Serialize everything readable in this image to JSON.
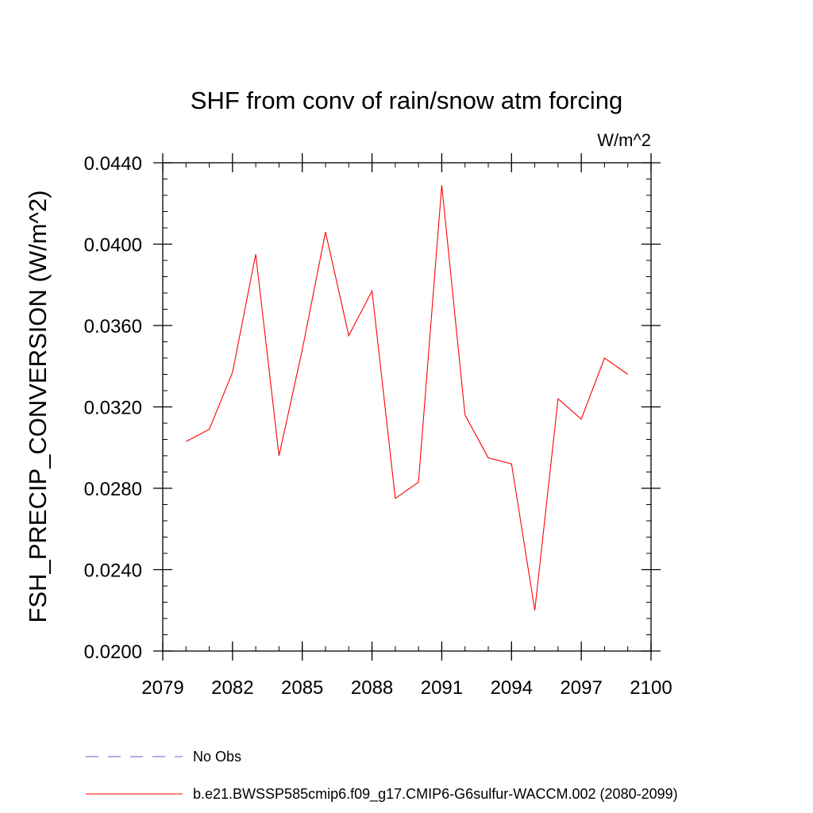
{
  "chart_data": {
    "type": "line",
    "title": "SHF from conv of rain/snow atm forcing",
    "units": "W/m^2",
    "ylabel": "FSH_PRECIP_CONVERSION  (W/m^2)",
    "xlabel": "",
    "xlim": [
      2079,
      2100
    ],
    "ylim": [
      0.02,
      0.044
    ],
    "xticks": [
      "2079",
      "2082",
      "2085",
      "2088",
      "2091",
      "2094",
      "2097",
      "2100"
    ],
    "yticks": [
      "0.0200",
      "0.0240",
      "0.0280",
      "0.0320",
      "0.0360",
      "0.0400",
      "0.0440"
    ],
    "grid": false,
    "legend_position": "bottom",
    "series": [
      {
        "name": "b.e21.BWSSP585cmip6.f09_g17.CMIP6-G6sulfur-WACCM.002 (2080-2099)",
        "color": "#ff0000",
        "style": "solid",
        "x": [
          2080,
          2081,
          2082,
          2083,
          2084,
          2085,
          2086,
          2087,
          2088,
          2089,
          2090,
          2091,
          2092,
          2093,
          2094,
          2095,
          2096,
          2097,
          2098,
          2099
        ],
        "values": [
          0.0303,
          0.0309,
          0.0337,
          0.0395,
          0.0296,
          0.0348,
          0.0406,
          0.0355,
          0.0377,
          0.0275,
          0.0283,
          0.0429,
          0.0316,
          0.0295,
          0.0292,
          0.022,
          0.0324,
          0.0314,
          0.0344,
          0.0336
        ]
      }
    ],
    "legend": [
      {
        "label": "No Obs",
        "color": "#6a5acd",
        "style": "dashed"
      },
      {
        "label": "b.e21.BWSSP585cmip6.f09_g17.CMIP6-G6sulfur-WACCM.002 (2080-2099)",
        "color": "#ff0000",
        "style": "solid"
      }
    ]
  }
}
